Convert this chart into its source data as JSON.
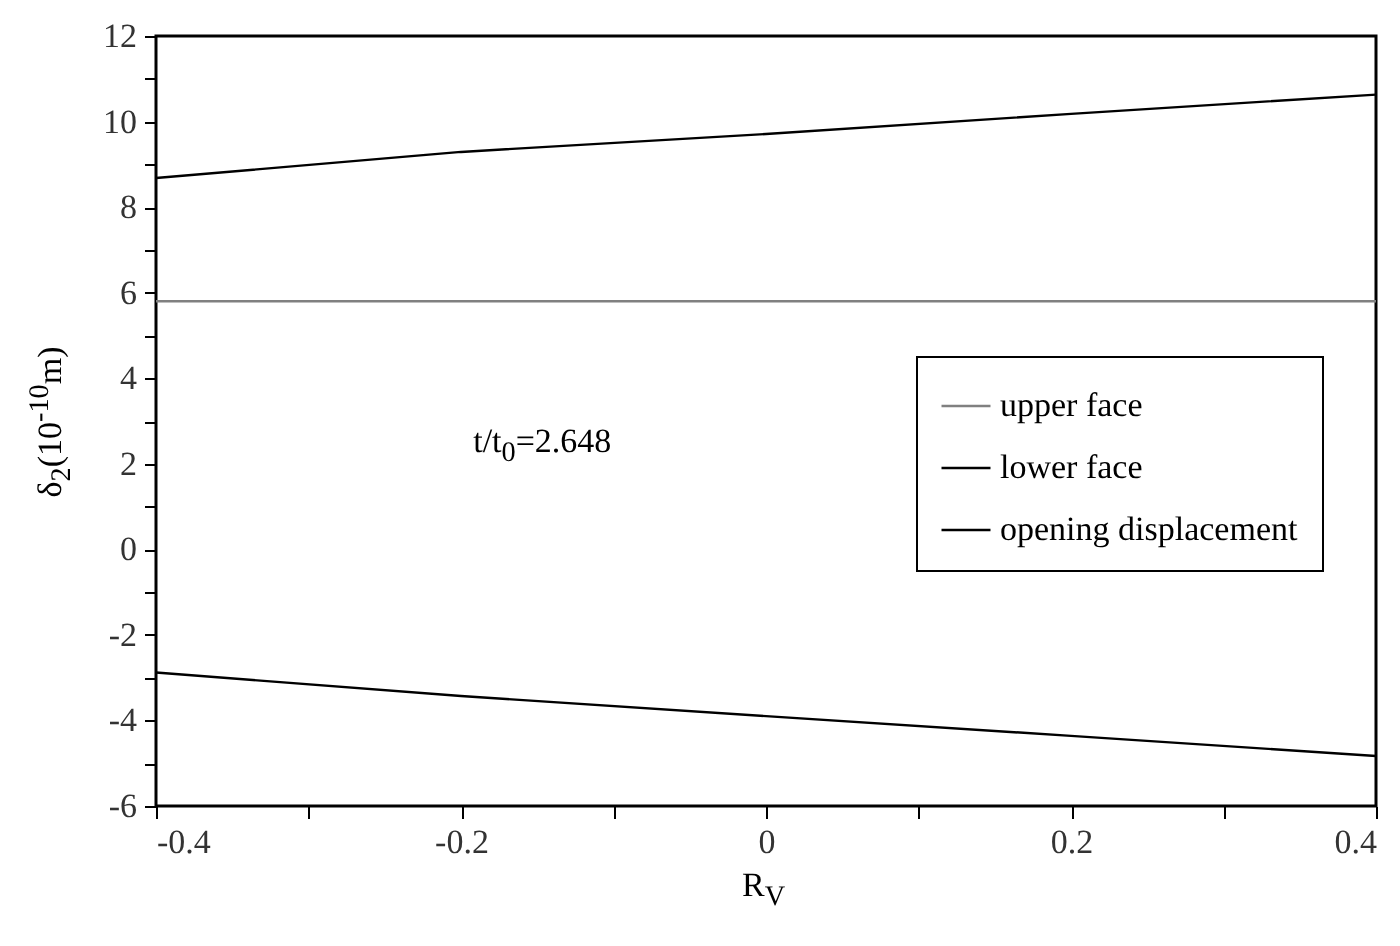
{
  "chart_data": {
    "type": "line",
    "xlabel": "R$_{V}$",
    "ylabel": "δ$_{2}$(10$^{-10}$m)",
    "annotations": [
      "t/t$_{0}$=2.648"
    ],
    "x": [
      -0.4,
      -0.2,
      0,
      0.2,
      0.4
    ],
    "series": [
      {
        "name": "upper face",
        "color": "#808080",
        "values": [
          5.8,
          5.8,
          5.8,
          5.8,
          5.8
        ]
      },
      {
        "name": "lower face",
        "color": "#000000",
        "values": [
          -2.88,
          -3.43,
          -3.9,
          -4.36,
          -4.83
        ]
      },
      {
        "name": "opening displacement",
        "color": "#000000",
        "values": [
          8.68,
          9.29,
          9.71,
          10.18,
          10.63
        ]
      }
    ],
    "xlim": [
      -0.4,
      0.4
    ],
    "ylim": [
      -6,
      12
    ],
    "xticks": [
      -0.4,
      {
        "value": -0.3,
        "label": null
      },
      -0.2,
      {
        "value": -0.1,
        "label": null
      },
      0,
      {
        "value": 0.1,
        "label": null
      },
      0.2,
      {
        "value": 0.3,
        "label": null
      },
      0.4
    ],
    "yticks": [
      -6,
      {
        "value": -5,
        "label": null
      },
      -4,
      {
        "value": -3,
        "label": null
      },
      -2,
      {
        "value": -1,
        "label": null
      },
      0,
      {
        "value": 1,
        "label": null
      },
      2,
      {
        "value": 3,
        "label": null
      },
      4,
      {
        "value": 5,
        "label": null
      },
      6,
      {
        "value": 7,
        "label": null
      },
      8,
      {
        "value": 9,
        "label": null
      },
      10,
      {
        "value": 11,
        "label": null
      },
      12
    ],
    "legend": "right",
    "grid": false,
    "marker": "none",
    "line_style": "solid"
  }
}
